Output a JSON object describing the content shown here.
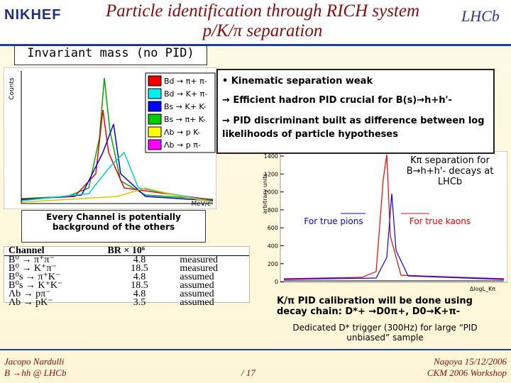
{
  "header": {
    "title_line1": "Particle identification through RICH system",
    "title_line2": "p/K/π separation",
    "logo_left": "NIKHEF",
    "logo_right": "LHCb"
  },
  "section_label": "Invariant mass (no PID)",
  "mass_plot": {
    "y_label": "Counts",
    "x_label": "MeV/c²",
    "legend": [
      "Bd → π+ π-",
      "Bd → K+ π-",
      "Bs → K+ K-",
      "Bs → π+ K-",
      "Λb → p K-",
      "Λb → p π-"
    ]
  },
  "note": "Every Channel is potentially background of the others",
  "bullets": [
    "• Kinematic separation weak",
    "→ Efficient hadron PID crucial for B(s)→h+h'-",
    "→ PID discriminant built as difference between log likelihoods of particle hypotheses"
  ],
  "dll_plot": {
    "caption": "Kπ separation for B→h+h'- decays at LHCb",
    "y_label": "arbitrary units",
    "yticks": [
      "1400",
      "1200",
      "1000",
      "800",
      "600",
      "400",
      "200",
      "0"
    ],
    "x_label": "ΔlogL_Kπ",
    "pions_label": "For true pions",
    "kaons_label": "For true kaons"
  },
  "table": {
    "headers": [
      "Channel",
      "BR × 10⁶"
    ],
    "rows": [
      [
        "B⁰ → π⁺π⁻",
        "4.8",
        "measured"
      ],
      [
        "B⁰ → K⁺π⁻",
        "18.5",
        "measured"
      ],
      [
        "B⁰s → π⁺K⁻",
        "4.8",
        "assumed"
      ],
      [
        "B⁰s → K⁺K⁻",
        "18.5",
        "assumed"
      ],
      [
        "Λb → pπ⁻",
        "4.8",
        "assumed"
      ],
      [
        "Λb → pK⁻",
        "3.5",
        "assumed"
      ]
    ]
  },
  "calibration": {
    "text1": "K/π PID calibration will be done using decay chain: D*+ →D0π+, D0→K+π-",
    "text2": "Dedicated D* trigger (300Hz) for large “PID unbiased” sample"
  },
  "footer": {
    "left1": "Jacopo Nardulli",
    "left2": "B →hh @ LHCb",
    "center": "/ 17",
    "right1": "Nagoya 15/12/2006",
    "right2": "CKM 2006 Workshop"
  }
}
